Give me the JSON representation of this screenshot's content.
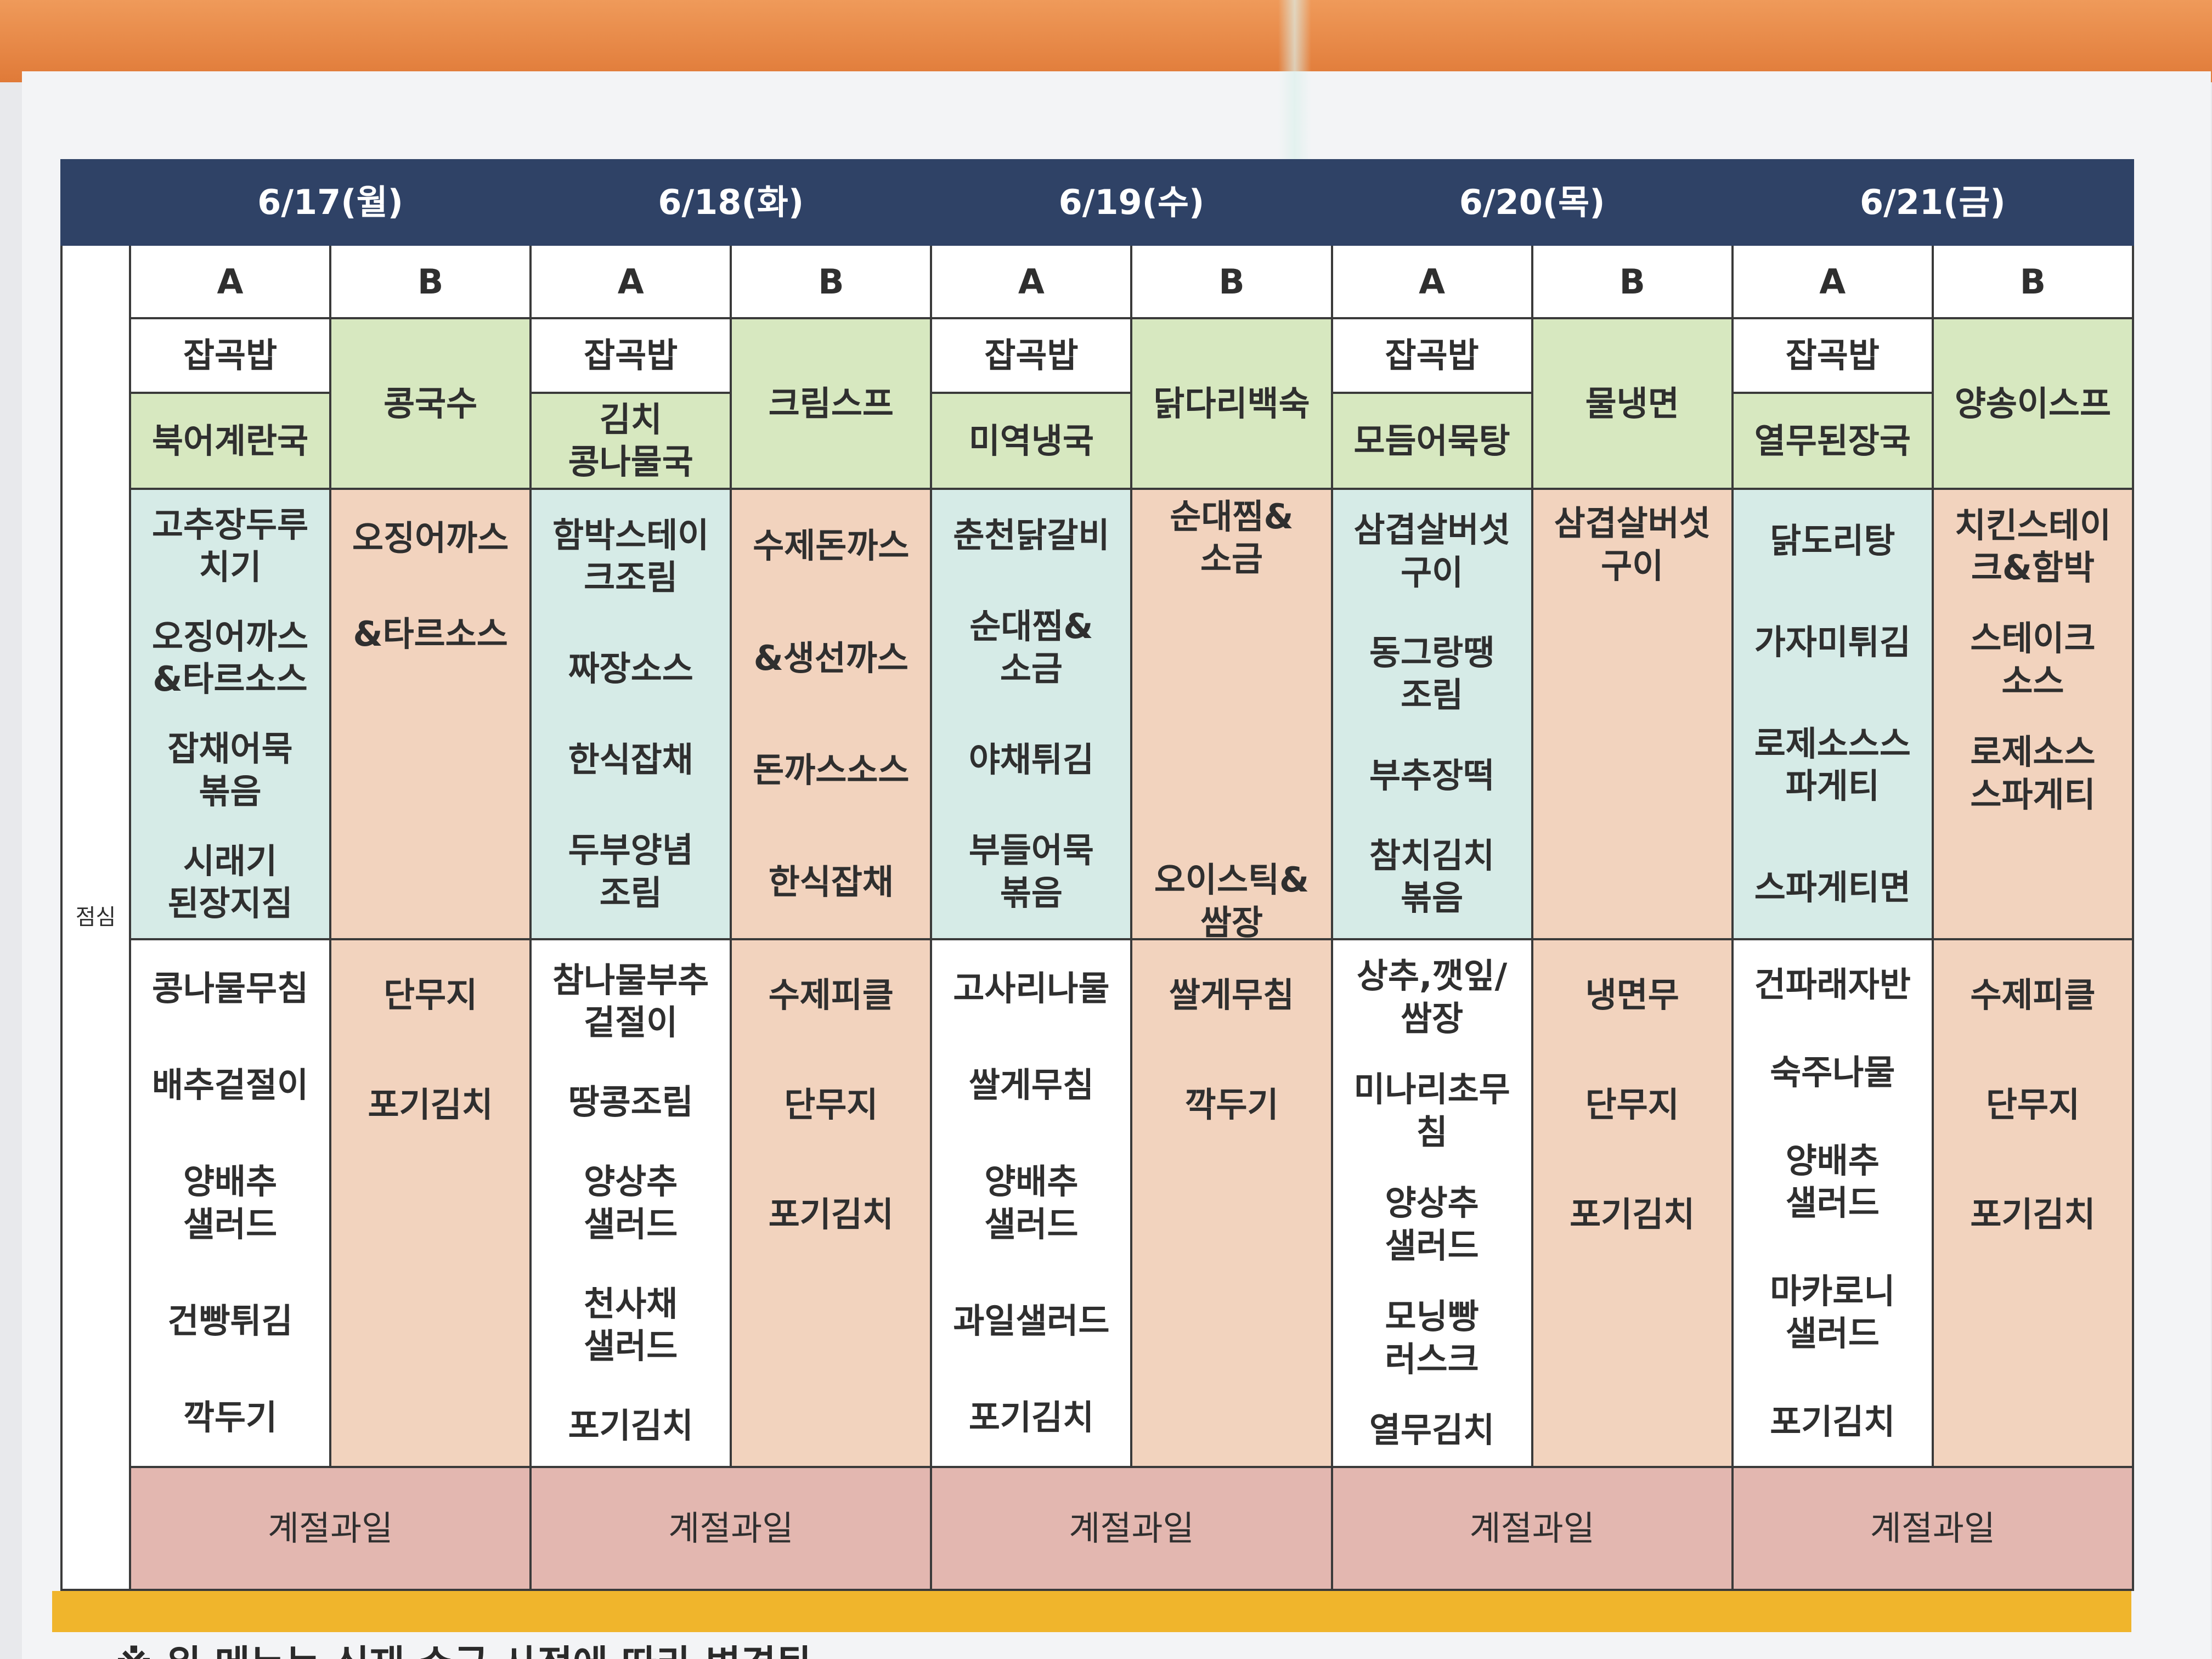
{
  "section_label": "점심",
  "days": [
    "6/17(월)",
    "6/18(화)",
    "6/19(수)",
    "6/20(목)",
    "6/21(금)"
  ],
  "ab": [
    "A",
    "B"
  ],
  "rice": "잡곡밥",
  "soups": {
    "mon_a": "북어계란국",
    "mon_b": "콩국수",
    "tue_a": "김치\n콩나물국",
    "tue_b": "크림스프",
    "wed_a": "미역냉국",
    "wed_b": "닭다리백숙",
    "thu_a": "모듬어묵탕",
    "thu_b": "물냉면",
    "fri_a": "열무된장국",
    "fri_b": "양송이스프"
  },
  "mains": {
    "mon_a": [
      "고추장두루\n치기",
      "오징어까스\n&타르소스",
      "잡채어묵\n볶음",
      "시래기\n된장지짐"
    ],
    "mon_b": [
      "오징어까스",
      "&타르소스"
    ],
    "tue_a": [
      "함박스테이\n크조림",
      "짜장소스",
      "한식잡채",
      "두부양념\n조림"
    ],
    "tue_b": [
      "수제돈까스",
      "&생선까스",
      "돈까스소스",
      "한식잡채"
    ],
    "wed_a": [
      "춘천닭갈비",
      "순대찜&\n소금",
      "야채튀김",
      "부들어묵\n볶음"
    ],
    "wed_b": [
      "순대찜&\n소금",
      "오이스틱&\n쌈장"
    ],
    "thu_a": [
      "삼겹살버섯\n구이",
      "동그랑땡\n조림",
      "부추장떡",
      "참치김치\n볶음"
    ],
    "thu_b": [
      "삼겹살버섯\n구이"
    ],
    "fri_a": [
      "닭도리탕",
      "가자미튀김",
      "로제소스스\n파게티",
      "스파게티면"
    ],
    "fri_b": [
      "치킨스테이\n크&함박",
      "스테이크\n소스",
      "로제소스\n스파게티"
    ]
  },
  "sides": {
    "mon_a": [
      "콩나물무침",
      "배추겉절이",
      "양배추\n샐러드",
      "건빵튀김",
      "깍두기"
    ],
    "mon_b": [
      "단무지",
      "포기김치"
    ],
    "tue_a": [
      "참나물부추\n겉절이",
      "땅콩조림",
      "양상추\n샐러드",
      "천사채\n샐러드",
      "포기김치"
    ],
    "tue_b": [
      "수제피클",
      "단무지",
      "포기김치"
    ],
    "wed_a": [
      "고사리나물",
      "쌀게무침",
      "양배추\n샐러드",
      "과일샐러드",
      "포기김치"
    ],
    "wed_b": [
      "쌀게무침",
      "깍두기"
    ],
    "thu_a": [
      "상추,깻잎/\n쌈장",
      "미나리초무\n침",
      "양상추\n샐러드",
      "모닝빵\n러스크",
      "열무김치"
    ],
    "thu_b": [
      "냉면무",
      "단무지",
      "포기김치"
    ],
    "fri_a": [
      "건파래자반",
      "숙주나물",
      "양배추\n샐러드",
      "마카로니\n샐러드",
      "포기김치"
    ],
    "fri_b": [
      "수제피클",
      "단무지",
      "포기김치"
    ]
  },
  "fruit": "계절과일",
  "footer_note": "※ 위 메뉴는 식재 수급 사정에 따라 변경됨"
}
